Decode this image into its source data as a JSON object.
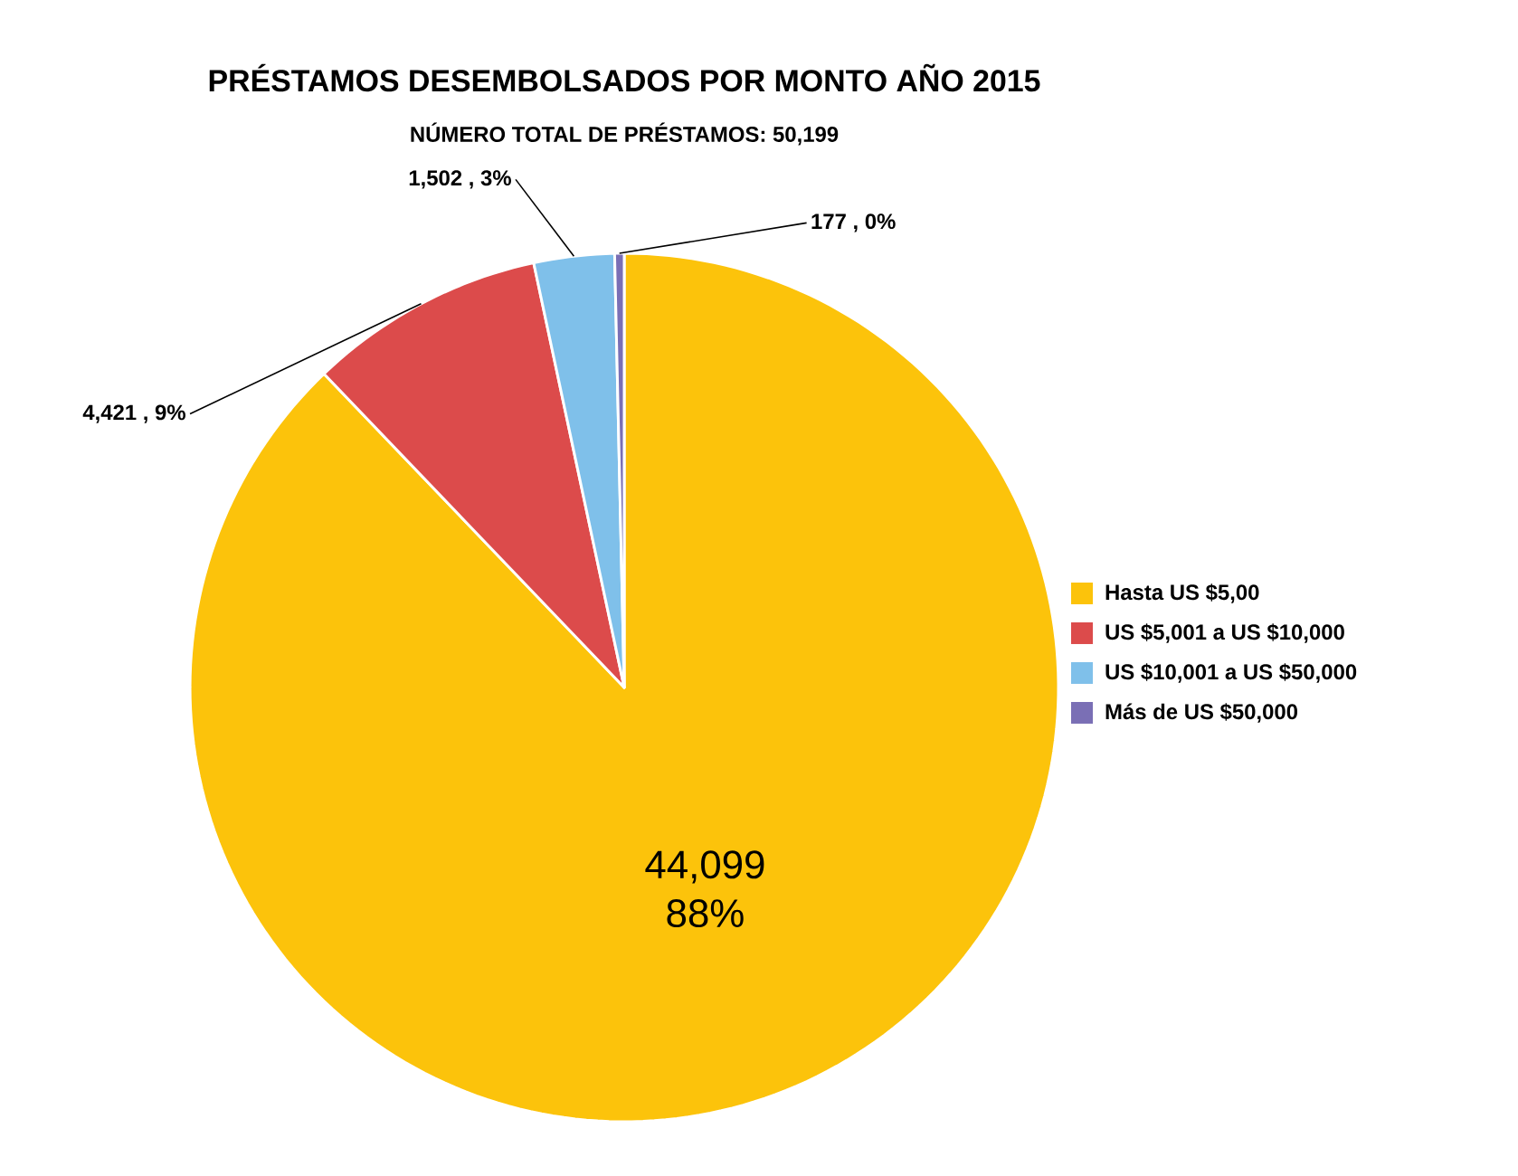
{
  "chart_data": {
    "type": "pie",
    "title": "PRÉSTAMOS DESEMBOLSADOS POR MONTO AÑO 2015",
    "subtitle": "NÚMERO TOTAL DE PRÉSTAMOS: 50,199",
    "categories": [
      "Hasta US $5,00",
      "US $5,001 a US $10,000",
      "US $10,001 a US $50,000",
      "Más de US $50,000"
    ],
    "values": [
      44099,
      4421,
      1502,
      177
    ],
    "colors": [
      "#fcc30b",
      "#dc4b4b",
      "#7fc0ea",
      "#7a6fb5"
    ],
    "value_labels": [
      "44,099 88%",
      "4,421 , 9%",
      "1,502 , 3%",
      "177 , 0%"
    ],
    "legend": "right"
  }
}
